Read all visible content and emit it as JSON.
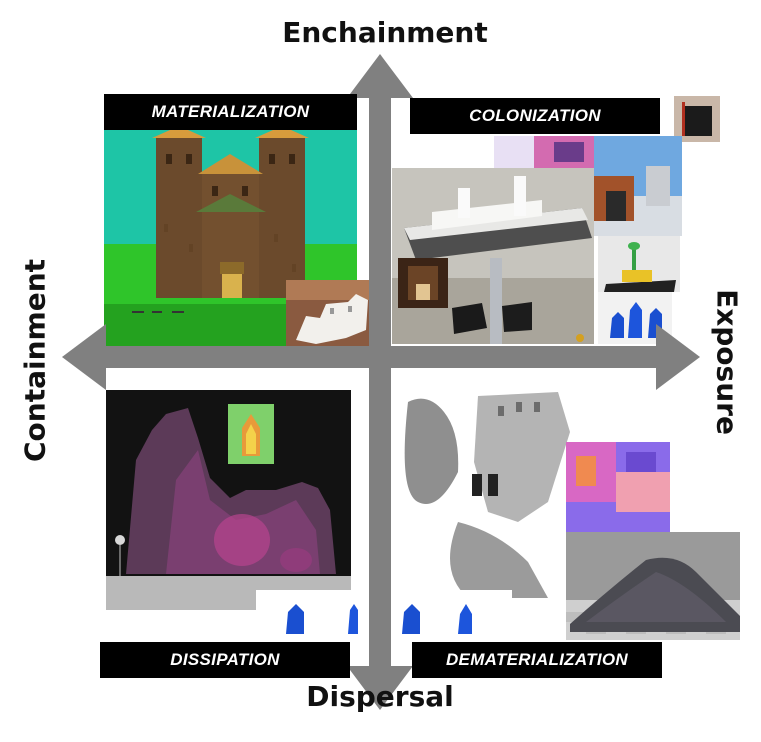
{
  "axes": {
    "top": "Enchainment",
    "bottom": "Dispersal",
    "left": "Containment",
    "right": "Exposure"
  },
  "quadrants": {
    "top_left": "MATERIALIZATION",
    "top_right": "COLONIZATION",
    "bottom_left": "DISSIPATION",
    "bottom_right": "DEMATERIALIZATION"
  },
  "colors": {
    "arrow": "#808080",
    "label_bg": "#000000",
    "label_text": "#ffffff"
  }
}
